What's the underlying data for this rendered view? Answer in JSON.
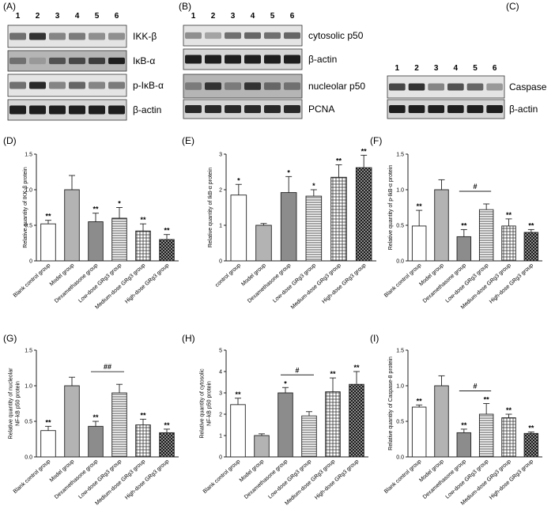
{
  "blots": [
    {
      "panel": "(A)",
      "lanes": [
        "1",
        "2",
        "3",
        "4",
        "5",
        "6"
      ],
      "rows": [
        {
          "label": "IKK-β",
          "kind": "light",
          "intensity": [
            0.55,
            0.85,
            0.45,
            0.5,
            0.4,
            0.4
          ]
        },
        {
          "label": "IκB-α",
          "kind": "dark",
          "intensity": [
            0.55,
            0.35,
            0.7,
            0.75,
            0.8,
            0.95
          ]
        },
        {
          "label": "p-IκB-α",
          "kind": "light",
          "intensity": [
            0.55,
            0.9,
            0.45,
            0.6,
            0.45,
            0.5
          ]
        },
        {
          "label": "β-actin",
          "kind": "strong",
          "intensity": [
            0.95,
            0.95,
            0.95,
            0.95,
            0.95,
            0.95
          ]
        }
      ]
    },
    {
      "panel": "(B)",
      "lanes": [
        "1",
        "2",
        "3",
        "4",
        "5",
        "6"
      ],
      "rows": [
        {
          "label": "cytosolic p50",
          "kind": "light",
          "intensity": [
            0.4,
            0.3,
            0.55,
            0.6,
            0.55,
            0.6
          ]
        },
        {
          "label": "β-actin",
          "kind": "strong",
          "intensity": [
            0.95,
            0.95,
            0.95,
            0.95,
            0.95,
            0.95
          ]
        },
        {
          "label": "nucleolar p50",
          "kind": "dark",
          "intensity": [
            0.5,
            0.85,
            0.5,
            0.85,
            0.6,
            0.55
          ]
        },
        {
          "label": "PCNA",
          "kind": "strong",
          "intensity": [
            0.9,
            0.9,
            0.9,
            0.9,
            0.9,
            0.9
          ]
        }
      ]
    },
    {
      "panel": "(C)",
      "lanes": [
        "1",
        "2",
        "3",
        "4",
        "5",
        "6"
      ],
      "rows": [
        {
          "label": "Caspase",
          "kind": "light",
          "intensity": [
            0.75,
            0.85,
            0.45,
            0.7,
            0.6,
            0.35
          ]
        },
        {
          "label": "β-actin",
          "kind": "strong",
          "intensity": [
            0.95,
            0.95,
            0.95,
            0.95,
            0.95,
            0.95
          ]
        }
      ]
    }
  ],
  "chart_data": [
    {
      "panel": "(D)",
      "type": "bar",
      "ylabel": "Relative quantity of IKK-β protein",
      "categories": [
        "Blank control group",
        "Model group",
        "Dexamethasone group",
        "Low-dose GRg3 group",
        "Medium-dose GRg3 group",
        "High-dose GRg3 group"
      ],
      "values": [
        0.52,
        1.0,
        0.55,
        0.6,
        0.42,
        0.3
      ],
      "errors": [
        0.05,
        0.2,
        0.12,
        0.15,
        0.1,
        0.07
      ],
      "sig": [
        "**",
        "",
        "**",
        "*",
        "**",
        "**"
      ],
      "ylim": [
        0,
        1.5
      ],
      "yticks": [
        0,
        0.5,
        1.0,
        1.5
      ],
      "ytick_labels": [
        "0",
        "0.5",
        "1.0",
        "1.5"
      ]
    },
    {
      "panel": "(E)",
      "type": "bar",
      "ylabel": "Relative quantity of IkB-α protein",
      "categories": [
        "control group",
        "Model group",
        "Dexamethasone group",
        "Low-dose GRg3 group",
        "Medium-dose GRg3 group",
        "High-dose GRg3 group"
      ],
      "values": [
        1.85,
        1.0,
        1.92,
        1.82,
        2.35,
        2.62
      ],
      "errors": [
        0.3,
        0.05,
        0.45,
        0.18,
        0.35,
        0.35
      ],
      "sig": [
        "*",
        "",
        "*",
        "*",
        "**",
        "**"
      ],
      "ylim": [
        0,
        3
      ],
      "yticks": [
        0,
        1,
        2,
        3
      ],
      "ytick_labels": [
        "0",
        "1",
        "2",
        "3"
      ]
    },
    {
      "panel": "(F)",
      "type": "bar",
      "ylabel": "Relative quantity of p-IkB-α protein",
      "categories": [
        "Blank control group",
        "Model group",
        "Dexamethasone group",
        "Low-dose GRg3 group",
        "Medium-dose GRg3 group",
        "High-dose GRg3 group"
      ],
      "values": [
        0.49,
        1.0,
        0.34,
        0.72,
        0.49,
        0.4
      ],
      "errors": [
        0.22,
        0.14,
        0.1,
        0.08,
        0.1,
        0.04
      ],
      "sig": [
        "**",
        "",
        "**",
        "",
        "**",
        "**"
      ],
      "ylim": [
        0,
        1.5
      ],
      "yticks": [
        0,
        0.5,
        1.0,
        1.5
      ],
      "ytick_labels": [
        "0.0",
        "0.5",
        "1.0",
        "1.5"
      ],
      "bracket": {
        "label": "#",
        "from": 2,
        "to": 3
      }
    },
    {
      "panel": "(G)",
      "type": "bar",
      "ylabel": "Relative quantity of nucleolar NF-kB p50 protein",
      "categories": [
        "Blank control group",
        "Model group",
        "Dexamethasone group",
        "Low-dose GRg3 group",
        "Medium-dose GRg3 group",
        "High-dose GRg3 group"
      ],
      "values": [
        0.37,
        1.0,
        0.43,
        0.9,
        0.45,
        0.34
      ],
      "errors": [
        0.06,
        0.12,
        0.07,
        0.12,
        0.08,
        0.05
      ],
      "sig": [
        "**",
        "",
        "**",
        "",
        "**",
        "**"
      ],
      "ylim": [
        0,
        1.5
      ],
      "yticks": [
        0,
        0.5,
        1.0,
        1.5
      ],
      "ytick_labels": [
        "0.0",
        "0.5",
        "1.0",
        "1.5"
      ],
      "bracket": {
        "label": "##",
        "from": 2,
        "to": 3
      }
    },
    {
      "panel": "(H)",
      "type": "bar",
      "ylabel": "Relative quantity of cytosolic NF-kB p50 protein",
      "categories": [
        "Blank control group",
        "Model group",
        "Dexamethasone group",
        "Low-dose GRg3 group",
        "Medium-dose GRg3 group",
        "High-dose GRg3 group"
      ],
      "values": [
        2.45,
        1.0,
        3.0,
        1.92,
        3.05,
        3.4
      ],
      "errors": [
        0.3,
        0.08,
        0.25,
        0.2,
        0.65,
        0.6
      ],
      "sig": [
        "**",
        "",
        "*",
        "",
        "**",
        "**"
      ],
      "ylim": [
        0,
        5
      ],
      "yticks": [
        0,
        1,
        2,
        3,
        4,
        5
      ],
      "ytick_labels": [
        "0",
        "1",
        "2",
        "3",
        "4",
        "5"
      ],
      "bracket": {
        "label": "#",
        "from": 2,
        "to": 3
      }
    },
    {
      "panel": "(I)",
      "type": "bar",
      "ylabel": "Relative quantity of Caspase-8 protein",
      "categories": [
        "Blank control group",
        "Model group",
        "Dexamethasone group",
        "Low-dose GRg3 group",
        "Medium-dose GRg3 group",
        "High-dose GRg3 group"
      ],
      "values": [
        0.7,
        1.0,
        0.34,
        0.6,
        0.55,
        0.33
      ],
      "errors": [
        0.03,
        0.14,
        0.05,
        0.15,
        0.05,
        0.02
      ],
      "sig": [
        "**",
        "",
        "**",
        "**",
        "**",
        "**"
      ],
      "ylim": [
        0,
        1.5
      ],
      "yticks": [
        0,
        0.5,
        1.0,
        1.5
      ],
      "ytick_labels": [
        "0.0",
        "0.5",
        "1.0",
        "1.5"
      ],
      "bracket": {
        "label": "#",
        "from": 2,
        "to": 3
      }
    }
  ]
}
